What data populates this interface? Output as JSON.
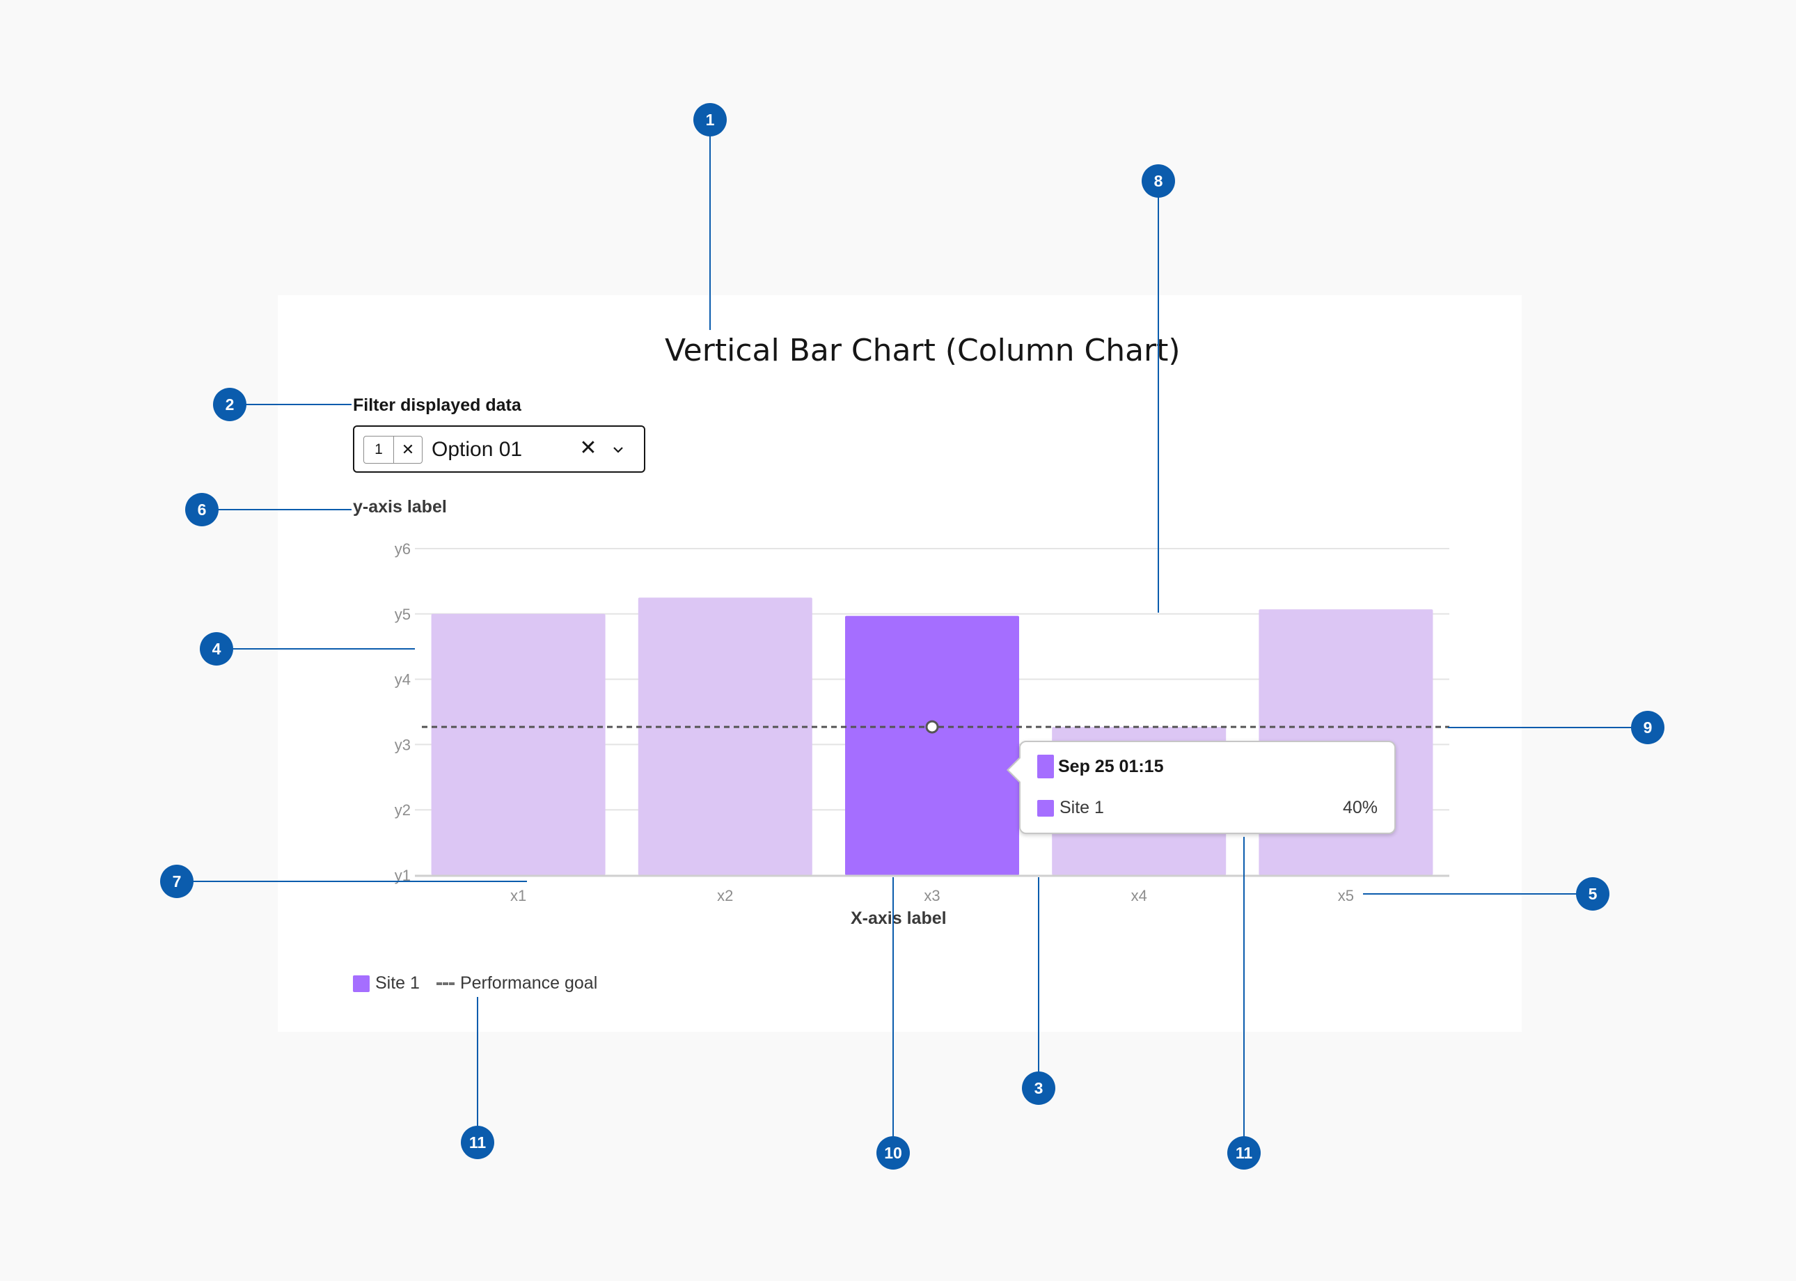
{
  "title": "Vertical Bar Chart (Column Chart)",
  "filter": {
    "label": "Filter displayed data",
    "tag_count": "1",
    "tag_remove": "✕",
    "selected_option": "Option 01",
    "clear": "✕"
  },
  "chart_data": {
    "type": "bar",
    "ylabel": "y-axis label",
    "xlabel": "X-axis label",
    "categories": [
      "x1",
      "x2",
      "x3",
      "x4",
      "x5"
    ],
    "y_ticks": [
      "y1",
      "y2",
      "y3",
      "y4",
      "y5",
      "y6"
    ],
    "ylim": [
      1,
      6
    ],
    "series": [
      {
        "name": "Site 1",
        "values": [
          5.0,
          5.25,
          4.97,
          3.27,
          5.07
        ]
      }
    ],
    "highlighted_index": 2,
    "goal_line": {
      "name": "Performance goal",
      "value": 3.27
    },
    "grid": true,
    "legend": "bottom-left",
    "colors": {
      "bar": "#dcc6f4",
      "bar_highlight": "#a56eff",
      "goal": "#555555"
    }
  },
  "legend": {
    "series_label": "Site 1",
    "goal_label": "Performance goal"
  },
  "tooltip": {
    "date": "Sep 25 01:15",
    "series": "Site 1",
    "value": "40%"
  },
  "markers": [
    "1",
    "2",
    "3",
    "4",
    "5",
    "6",
    "7",
    "8",
    "9",
    "10",
    "11",
    "11"
  ],
  "accent_color": "#0b5cad"
}
